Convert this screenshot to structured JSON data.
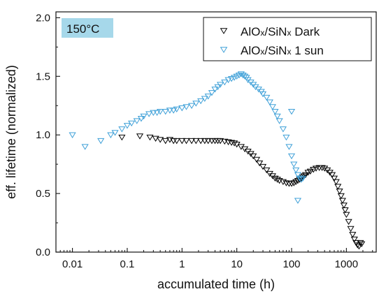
{
  "chart_data": {
    "type": "scatter",
    "title": "",
    "xlabel": "accumulated time (h)",
    "ylabel": "eff. lifetime (normalized)",
    "xscale": "log",
    "xlim": [
      0.005,
      3500
    ],
    "ylim": [
      0.0,
      2.05
    ],
    "x_ticks": [
      0.01,
      0.1,
      1,
      10,
      100,
      1000
    ],
    "x_tick_labels": [
      "0.01",
      "0.1",
      "1",
      "10",
      "100",
      "1000"
    ],
    "y_ticks": [
      0.0,
      0.5,
      1.0,
      1.5,
      2.0
    ],
    "y_tick_labels": [
      "0.0",
      "0.5",
      "1.0",
      "1.5",
      "2.0"
    ],
    "grid": false,
    "legend_position": "top-right",
    "annotation": {
      "text": "150°C",
      "background": "#a6d8ea"
    },
    "marker": "triangle-down-open",
    "series": [
      {
        "name": "AlOx/SiNx Dark",
        "name_parts": [
          {
            "text": "AlO",
            "sub": false
          },
          {
            "text": "x",
            "sub": true
          },
          {
            "text": "/SiN",
            "sub": false
          },
          {
            "text": "x",
            "sub": true
          },
          {
            "text": " Dark",
            "sub": false
          }
        ],
        "color": "#000000",
        "x": [
          0.08,
          0.17,
          0.26,
          0.33,
          0.4,
          0.5,
          0.6,
          0.7,
          0.8,
          1.0,
          1.2,
          1.5,
          1.8,
          2.2,
          2.6,
          3.0,
          3.5,
          4.0,
          4.5,
          5.0,
          6.0,
          7.0,
          8.0,
          9.0,
          10,
          12,
          14,
          16,
          18,
          20,
          23,
          26,
          30,
          35,
          40,
          45,
          50,
          55,
          60,
          70,
          80,
          90,
          100,
          110,
          120,
          130,
          140,
          150,
          160,
          170,
          180,
          200,
          220,
          250,
          280,
          320,
          360,
          400,
          450,
          500,
          550,
          600,
          650,
          700,
          750,
          800,
          850,
          900,
          950,
          1000,
          1100,
          1200,
          1300,
          1400,
          1500,
          1600,
          1700,
          1800,
          1900
        ],
        "y": [
          0.98,
          0.99,
          0.98,
          0.97,
          0.96,
          0.95,
          0.96,
          0.95,
          0.95,
          0.95,
          0.95,
          0.95,
          0.95,
          0.95,
          0.95,
          0.95,
          0.95,
          0.95,
          0.95,
          0.95,
          0.945,
          0.94,
          0.935,
          0.93,
          0.92,
          0.9,
          0.88,
          0.86,
          0.84,
          0.82,
          0.79,
          0.76,
          0.73,
          0.7,
          0.67,
          0.65,
          0.63,
          0.62,
          0.61,
          0.6,
          0.59,
          0.585,
          0.585,
          0.59,
          0.6,
          0.61,
          0.62,
          0.63,
          0.64,
          0.65,
          0.66,
          0.68,
          0.69,
          0.705,
          0.715,
          0.72,
          0.72,
          0.715,
          0.7,
          0.68,
          0.66,
          0.63,
          0.6,
          0.56,
          0.52,
          0.48,
          0.44,
          0.4,
          0.36,
          0.32,
          0.26,
          0.2,
          0.15,
          0.11,
          0.08,
          0.06,
          0.05,
          0.08,
          0.07
        ]
      },
      {
        "name": "AlOx/SiNx 1 sun",
        "name_parts": [
          {
            "text": "AlO",
            "sub": false
          },
          {
            "text": "x",
            "sub": true
          },
          {
            "text": "/SiN",
            "sub": false
          },
          {
            "text": "x",
            "sub": true
          },
          {
            "text": " 1 sun",
            "sub": false
          }
        ],
        "color": "#3fa0d8",
        "x": [
          0.01,
          0.017,
          0.033,
          0.05,
          0.06,
          0.08,
          0.1,
          0.12,
          0.15,
          0.18,
          0.2,
          0.25,
          0.3,
          0.35,
          0.4,
          0.5,
          0.6,
          0.7,
          0.8,
          1.0,
          1.2,
          1.5,
          1.8,
          2.2,
          2.6,
          3.0,
          3.5,
          4.0,
          4.5,
          5.0,
          6.0,
          7.0,
          8.0,
          9.0,
          10,
          11,
          12,
          13,
          14,
          15,
          16,
          18,
          20,
          22,
          25,
          28,
          30,
          35,
          40,
          45,
          50,
          55,
          60,
          70,
          80,
          90,
          100,
          110,
          120,
          130,
          140,
          150,
          160,
          100,
          130
        ],
        "y": [
          1.0,
          0.9,
          0.95,
          1.0,
          1.02,
          1.05,
          1.08,
          1.1,
          1.12,
          1.14,
          1.16,
          1.18,
          1.19,
          1.19,
          1.2,
          1.2,
          1.21,
          1.21,
          1.22,
          1.23,
          1.24,
          1.25,
          1.27,
          1.29,
          1.31,
          1.33,
          1.36,
          1.39,
          1.41,
          1.43,
          1.45,
          1.47,
          1.48,
          1.49,
          1.5,
          1.51,
          1.52,
          1.51,
          1.5,
          1.49,
          1.47,
          1.45,
          1.43,
          1.41,
          1.39,
          1.37,
          1.35,
          1.32,
          1.28,
          1.24,
          1.2,
          1.16,
          1.12,
          1.05,
          0.98,
          0.9,
          0.82,
          0.75,
          0.7,
          0.66,
          0.63,
          0.62,
          0.63,
          1.2,
          0.44
        ]
      }
    ]
  }
}
